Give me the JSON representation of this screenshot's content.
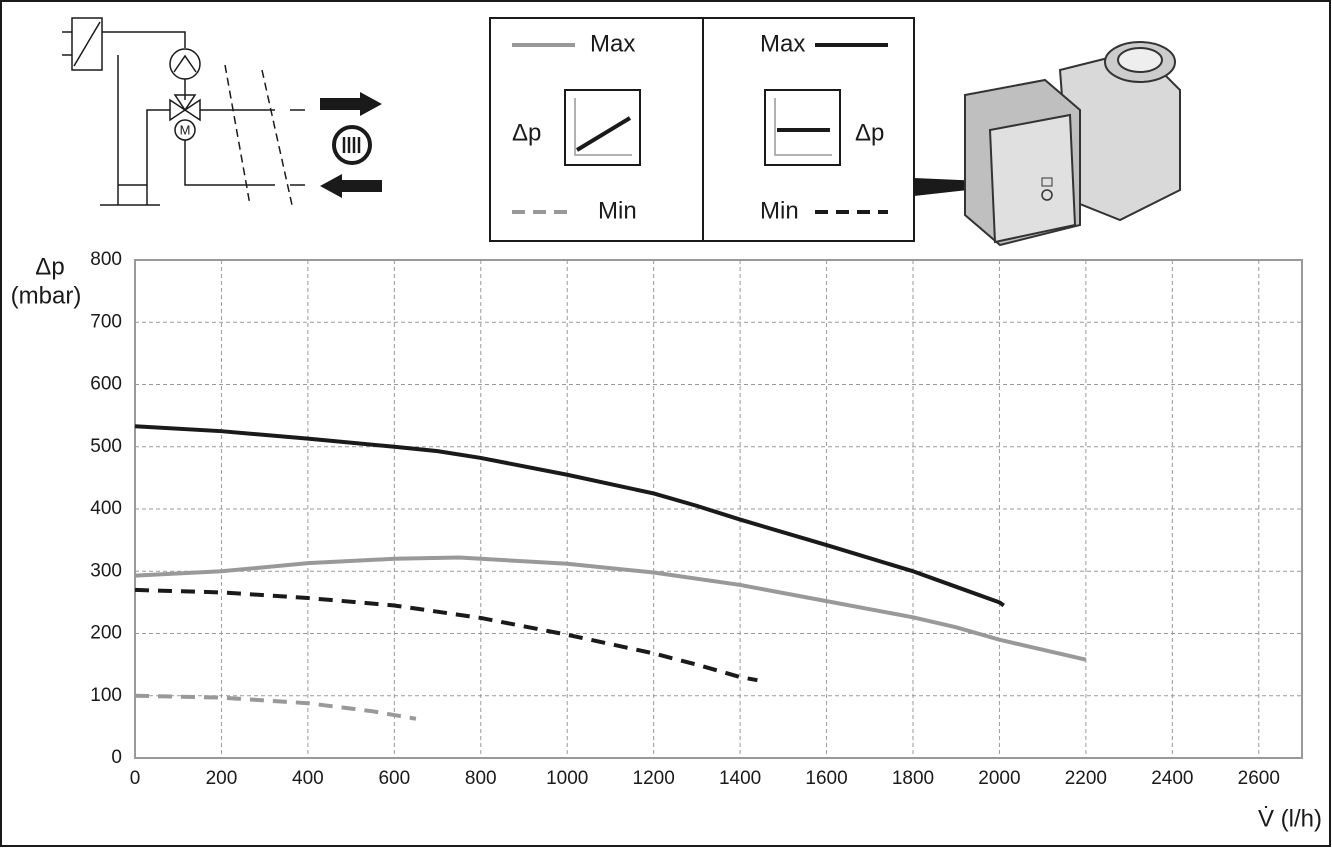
{
  "chart_data": {
    "type": "line",
    "y_label": "Δp",
    "y_unit": "(mbar)",
    "x_label": "V̇ (l/h)",
    "xlim": [
      0,
      2700
    ],
    "xticks": [
      0,
      200,
      400,
      600,
      800,
      1000,
      1200,
      1400,
      1600,
      1800,
      2000,
      2200,
      2400,
      2600
    ],
    "ylim": [
      0,
      800
    ],
    "yticks": [
      0,
      100,
      200,
      300,
      400,
      500,
      600,
      700,
      800
    ],
    "grid": true,
    "legend_panels": [
      {
        "symbol_label": "Δp"
      },
      {
        "symbol_label": "Δp"
      }
    ],
    "series": [
      {
        "name": "Max",
        "color": "#999999",
        "dash": false,
        "x": [
          0,
          200,
          400,
          600,
          750,
          800,
          1000,
          1200,
          1400,
          1600,
          1800,
          1900,
          2000,
          2200
        ],
        "values": [
          293,
          300,
          313,
          320,
          322,
          320,
          312,
          298,
          278,
          252,
          226,
          210,
          190,
          158
        ]
      },
      {
        "name": "Min",
        "color": "#999999",
        "dash": true,
        "x": [
          0,
          200,
          400,
          550,
          650
        ],
        "values": [
          100,
          97,
          88,
          75,
          63
        ]
      },
      {
        "name": "Max",
        "color": "#1a1a1a",
        "dash": false,
        "x": [
          0,
          200,
          400,
          600,
          700,
          800,
          1000,
          1200,
          1300,
          1400,
          1600,
          1800,
          1900,
          2000,
          2010
        ],
        "values": [
          533,
          525,
          513,
          500,
          493,
          482,
          455,
          425,
          405,
          383,
          342,
          300,
          275,
          250,
          245
        ]
      },
      {
        "name": "Min",
        "color": "#1a1a1a",
        "dash": true,
        "x": [
          0,
          200,
          400,
          600,
          800,
          1000,
          1200,
          1300,
          1400,
          1440
        ],
        "values": [
          270,
          266,
          257,
          245,
          225,
          198,
          168,
          150,
          130,
          125
        ]
      }
    ]
  }
}
